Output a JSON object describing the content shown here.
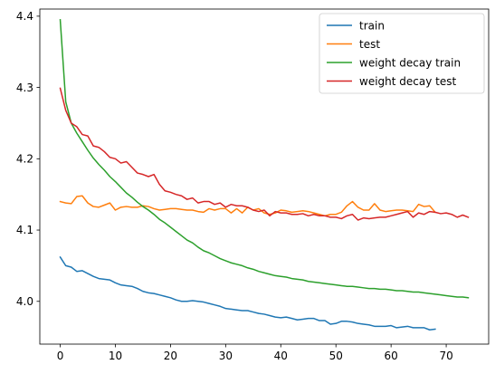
{
  "chart_data": {
    "type": "line",
    "title": "",
    "xlabel": "",
    "ylabel": "",
    "xlim": [
      -3.7,
      77.7
    ],
    "ylim": [
      3.94,
      4.41
    ],
    "xticks": [
      0,
      10,
      20,
      30,
      40,
      50,
      60,
      70
    ],
    "yticks": [
      4.0,
      4.1,
      4.2,
      4.3,
      4.4
    ],
    "ytick_labels": [
      "4.0",
      "4.1",
      "4.2",
      "4.3",
      "4.4"
    ],
    "grid": false,
    "legend_position": "top-right",
    "series": [
      {
        "name": "train",
        "color": "#1f77b4",
        "x": [
          0,
          1,
          2,
          3,
          4,
          5,
          6,
          7,
          8,
          9,
          10,
          11,
          12,
          13,
          14,
          15,
          16,
          17,
          18,
          19,
          20,
          21,
          22,
          23,
          24,
          25,
          26,
          27,
          28,
          29,
          30,
          31,
          32,
          33,
          34,
          35,
          36,
          37,
          38,
          39,
          40,
          41,
          42,
          43,
          44,
          45,
          46,
          47,
          48,
          49,
          50,
          51,
          52,
          53,
          54,
          55,
          56,
          57,
          58,
          59,
          60,
          61,
          62,
          63,
          64,
          65,
          66,
          67,
          68
        ],
        "y": [
          4.062,
          4.05,
          4.048,
          4.042,
          4.043,
          4.039,
          4.035,
          4.032,
          4.031,
          4.03,
          4.026,
          4.023,
          4.022,
          4.021,
          4.018,
          4.014,
          4.012,
          4.011,
          4.009,
          4.007,
          4.005,
          4.002,
          4.0,
          4.0,
          4.001,
          4.0,
          3.999,
          3.997,
          3.995,
          3.993,
          3.99,
          3.989,
          3.988,
          3.987,
          3.987,
          3.985,
          3.983,
          3.982,
          3.98,
          3.978,
          3.977,
          3.978,
          3.976,
          3.974,
          3.975,
          3.976,
          3.976,
          3.973,
          3.973,
          3.968,
          3.969,
          3.972,
          3.972,
          3.971,
          3.969,
          3.968,
          3.967,
          3.965,
          3.965,
          3.965,
          3.966,
          3.963,
          3.964,
          3.965,
          3.963,
          3.963,
          3.963,
          3.96,
          3.961
        ]
      },
      {
        "name": "test",
        "color": "#ff7f0e",
        "x": [
          0,
          1,
          2,
          3,
          4,
          5,
          6,
          7,
          8,
          9,
          10,
          11,
          12,
          13,
          14,
          15,
          16,
          17,
          18,
          19,
          20,
          21,
          22,
          23,
          24,
          25,
          26,
          27,
          28,
          29,
          30,
          31,
          32,
          33,
          34,
          35,
          36,
          37,
          38,
          39,
          40,
          41,
          42,
          43,
          44,
          45,
          46,
          47,
          48,
          49,
          50,
          51,
          52,
          53,
          54,
          55,
          56,
          57,
          58,
          59,
          60,
          61,
          62,
          63,
          64,
          65,
          66,
          67,
          68
        ],
        "y": [
          4.14,
          4.138,
          4.137,
          4.147,
          4.148,
          4.138,
          4.133,
          4.132,
          4.135,
          4.138,
          4.128,
          4.132,
          4.133,
          4.132,
          4.132,
          4.134,
          4.133,
          4.13,
          4.128,
          4.129,
          4.13,
          4.13,
          4.129,
          4.128,
          4.128,
          4.126,
          4.125,
          4.13,
          4.128,
          4.13,
          4.13,
          4.124,
          4.13,
          4.124,
          4.132,
          4.128,
          4.13,
          4.124,
          4.122,
          4.124,
          4.128,
          4.127,
          4.125,
          4.126,
          4.127,
          4.126,
          4.124,
          4.122,
          4.12,
          4.122,
          4.122,
          4.125,
          4.134,
          4.14,
          4.132,
          4.128,
          4.128,
          4.137,
          4.128,
          4.126,
          4.127,
          4.128,
          4.128,
          4.127,
          4.126,
          4.136,
          4.133,
          4.134,
          4.125
        ]
      },
      {
        "name": "weight decay train",
        "color": "#2ca02c",
        "x": [
          0,
          1,
          2,
          3,
          4,
          5,
          6,
          7,
          8,
          9,
          10,
          11,
          12,
          13,
          14,
          15,
          16,
          17,
          18,
          19,
          20,
          21,
          22,
          23,
          24,
          25,
          26,
          27,
          28,
          29,
          30,
          31,
          32,
          33,
          34,
          35,
          36,
          37,
          38,
          39,
          40,
          41,
          42,
          43,
          44,
          45,
          46,
          47,
          48,
          49,
          50,
          51,
          52,
          53,
          54,
          55,
          56,
          57,
          58,
          59,
          60,
          61,
          62,
          63,
          64,
          65,
          66,
          67,
          68,
          69,
          70,
          71,
          72,
          73,
          74
        ],
        "y": [
          4.395,
          4.28,
          4.25,
          4.236,
          4.224,
          4.212,
          4.201,
          4.192,
          4.184,
          4.175,
          4.168,
          4.16,
          4.152,
          4.146,
          4.139,
          4.133,
          4.128,
          4.122,
          4.115,
          4.11,
          4.104,
          4.098,
          4.092,
          4.086,
          4.082,
          4.076,
          4.071,
          4.068,
          4.064,
          4.06,
          4.057,
          4.054,
          4.052,
          4.05,
          4.047,
          4.045,
          4.042,
          4.04,
          4.038,
          4.036,
          4.035,
          4.034,
          4.032,
          4.031,
          4.03,
          4.028,
          4.027,
          4.026,
          4.025,
          4.024,
          4.023,
          4.022,
          4.021,
          4.021,
          4.02,
          4.019,
          4.018,
          4.018,
          4.017,
          4.017,
          4.016,
          4.015,
          4.015,
          4.014,
          4.013,
          4.013,
          4.012,
          4.011,
          4.01,
          4.009,
          4.008,
          4.007,
          4.006,
          4.006,
          4.005
        ]
      },
      {
        "name": "weight decay test",
        "color": "#d62728",
        "x": [
          0,
          1,
          2,
          3,
          4,
          5,
          6,
          7,
          8,
          9,
          10,
          11,
          12,
          13,
          14,
          15,
          16,
          17,
          18,
          19,
          20,
          21,
          22,
          23,
          24,
          25,
          26,
          27,
          28,
          29,
          30,
          31,
          32,
          33,
          34,
          35,
          36,
          37,
          38,
          39,
          40,
          41,
          42,
          43,
          44,
          45,
          46,
          47,
          48,
          49,
          50,
          51,
          52,
          53,
          54,
          55,
          56,
          57,
          58,
          59,
          60,
          61,
          62,
          63,
          64,
          65,
          66,
          67,
          68,
          69,
          70,
          71,
          72,
          73,
          74
        ],
        "y": [
          4.299,
          4.268,
          4.25,
          4.245,
          4.234,
          4.232,
          4.218,
          4.216,
          4.21,
          4.202,
          4.2,
          4.194,
          4.196,
          4.188,
          4.18,
          4.178,
          4.175,
          4.178,
          4.164,
          4.155,
          4.153,
          4.15,
          4.148,
          4.143,
          4.145,
          4.138,
          4.14,
          4.14,
          4.136,
          4.138,
          4.132,
          4.136,
          4.134,
          4.134,
          4.132,
          4.128,
          4.126,
          4.128,
          4.12,
          4.126,
          4.124,
          4.124,
          4.122,
          4.122,
          4.123,
          4.12,
          4.122,
          4.12,
          4.12,
          4.118,
          4.118,
          4.116,
          4.12,
          4.122,
          4.114,
          4.117,
          4.116,
          4.117,
          4.118,
          4.118,
          4.12,
          4.122,
          4.124,
          4.126,
          4.118,
          4.124,
          4.122,
          4.126,
          4.125,
          4.123,
          4.124,
          4.122,
          4.118,
          4.121,
          4.118
        ]
      }
    ]
  }
}
